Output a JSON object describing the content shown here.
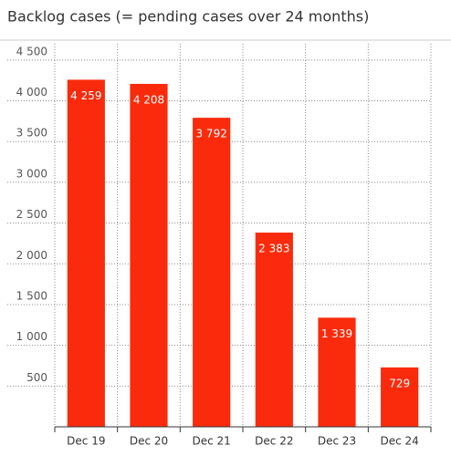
{
  "chart_data": {
    "type": "bar",
    "title": "Backlog cases (= pending cases over 24 months)",
    "categories": [
      "Dec 19",
      "Dec 20",
      "Dec 21",
      "Dec 22",
      "Dec 23",
      "Dec 24"
    ],
    "values": [
      4259,
      4208,
      3792,
      2383,
      1339,
      729
    ],
    "value_labels": [
      "4 259",
      "4 208",
      "3 792",
      "2 383",
      "1 339",
      "729"
    ],
    "color": "#fa2b0c",
    "ylim": [
      0,
      4700
    ],
    "yticks": [
      500,
      {
        "value": 1000,
        "label": "1 000"
      },
      {
        "value": 1500,
        "label": "1 500"
      },
      {
        "value": 2000,
        "label": "2 000"
      },
      {
        "value": 2500,
        "label": "2 500"
      },
      {
        "value": 3000,
        "label": "3 000"
      },
      {
        "value": 3500,
        "label": "3 500"
      },
      {
        "value": 4000,
        "label": "4 000"
      },
      {
        "value": 4500,
        "label": "4 500"
      }
    ],
    "grid": true
  }
}
